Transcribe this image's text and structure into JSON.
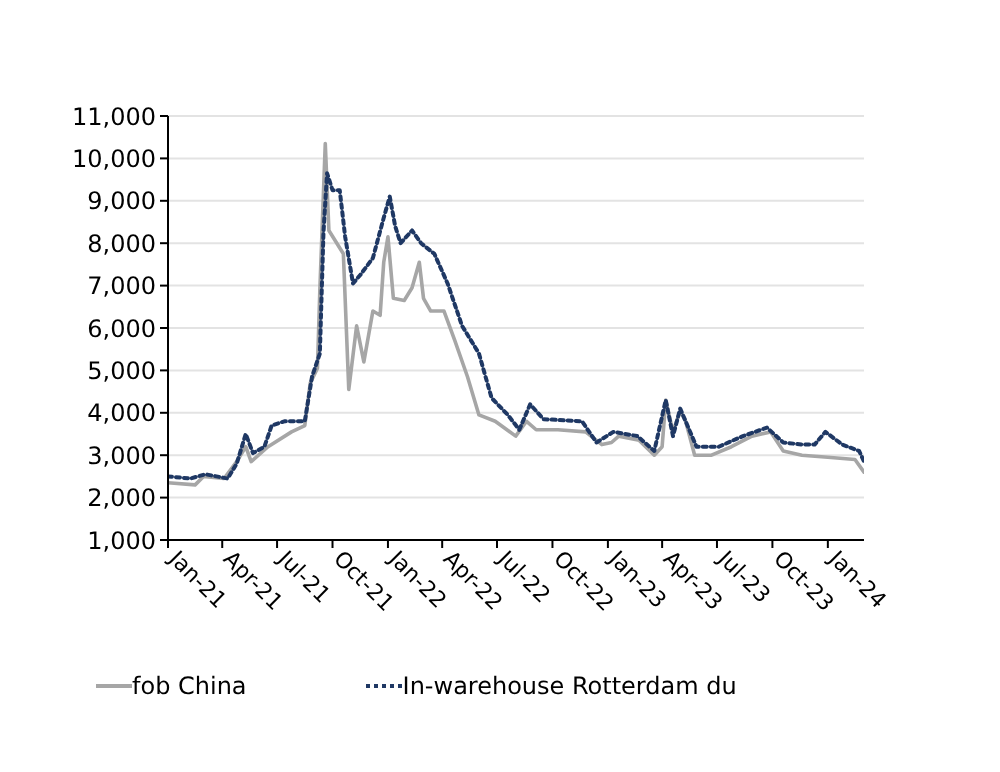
{
  "chart_data": {
    "type": "line",
    "xlim": [
      "2021-01-01",
      "2024-03-01"
    ],
    "xticks": [
      {
        "value": "2021-01-01",
        "label": "Jan-21"
      },
      {
        "value": "2021-04-01",
        "label": "Apr-21"
      },
      {
        "value": "2021-07-01",
        "label": "Jul-21"
      },
      {
        "value": "2021-10-01",
        "label": "Oct-21"
      },
      {
        "value": "2022-01-01",
        "label": "Jan-22"
      },
      {
        "value": "2022-04-01",
        "label": "Apr-22"
      },
      {
        "value": "2022-07-01",
        "label": "Jul-22"
      },
      {
        "value": "2022-10-01",
        "label": "Oct-22"
      },
      {
        "value": "2023-01-01",
        "label": "Jan-23"
      },
      {
        "value": "2023-04-01",
        "label": "Apr-23"
      },
      {
        "value": "2023-07-01",
        "label": "Jul-23"
      },
      {
        "value": "2023-10-01",
        "label": "Oct-23"
      },
      {
        "value": "2024-01-01",
        "label": "Jan-24"
      }
    ],
    "ylim": [
      1000,
      11000
    ],
    "yticks": [
      {
        "value": 1000,
        "label": "1,000"
      },
      {
        "value": 2000,
        "label": "2,000"
      },
      {
        "value": 3000,
        "label": "3,000"
      },
      {
        "value": 4000,
        "label": "4,000"
      },
      {
        "value": 5000,
        "label": "5,000"
      },
      {
        "value": 6000,
        "label": "6,000"
      },
      {
        "value": 7000,
        "label": "7,000"
      },
      {
        "value": 8000,
        "label": "8,000"
      },
      {
        "value": 9000,
        "label": "9,000"
      },
      {
        "value": 10000,
        "label": "10,000"
      },
      {
        "value": 11000,
        "label": "11,000"
      }
    ],
    "grid": "y",
    "legend": "bottom",
    "marker": "none",
    "series": [
      {
        "name": "fob China",
        "color": "#a6a6a6",
        "line_style": "solid",
        "x": [
          "2021-01-01",
          "2021-02-15",
          "2021-03-01",
          "2021-04-04",
          "2021-04-25",
          "2021-05-10",
          "2021-05-19",
          "2021-06-16",
          "2021-07-25",
          "2021-08-16",
          "2021-08-25",
          "2021-09-06",
          "2021-09-10",
          "2021-09-19",
          "2021-09-25",
          "2021-10-19",
          "2021-10-28",
          "2021-11-10",
          "2021-11-22",
          "2021-12-07",
          "2021-12-19",
          "2021-12-25",
          "2022-01-01",
          "2022-01-10",
          "2022-01-28",
          "2022-02-10",
          "2022-02-22",
          "2022-03-01",
          "2022-03-13",
          "2022-04-04",
          "2022-04-22",
          "2022-05-13",
          "2022-06-01",
          "2022-06-28",
          "2022-08-01",
          "2022-08-19",
          "2022-09-04",
          "2022-10-10",
          "2022-11-25",
          "2022-12-22",
          "2023-01-07",
          "2023-01-19",
          "2023-02-22",
          "2023-03-19",
          "2023-04-01",
          "2023-04-07",
          "2023-04-19",
          "2023-05-01",
          "2023-05-10",
          "2023-05-25",
          "2023-06-22",
          "2023-07-25",
          "2023-08-28",
          "2023-09-28",
          "2023-10-19",
          "2023-11-19",
          "2024-01-01",
          "2024-02-15",
          "2024-03-01"
        ],
        "values": [
          2350,
          2300,
          2500,
          2450,
          2850,
          3200,
          2850,
          3200,
          3550,
          3700,
          4700,
          5050,
          6900,
          10350,
          8300,
          7750,
          4550,
          6050,
          5200,
          6400,
          6300,
          7550,
          8150,
          6700,
          6650,
          6950,
          7550,
          6700,
          6400,
          6400,
          5700,
          4850,
          3950,
          3800,
          3450,
          3800,
          3600,
          3600,
          3550,
          3250,
          3300,
          3450,
          3350,
          3000,
          3200,
          4300,
          3550,
          4050,
          3800,
          3000,
          3000,
          3200,
          3450,
          3550,
          3100,
          3000,
          2950,
          2900,
          2600
        ]
      },
      {
        "name": "In-warehouse Rotterdam du",
        "color": "#1f3864",
        "line_style": "dotted",
        "x": [
          "2021-01-01",
          "2021-02-07",
          "2021-03-04",
          "2021-04-10",
          "2021-04-25",
          "2021-05-10",
          "2021-05-22",
          "2021-06-10",
          "2021-06-22",
          "2021-07-13",
          "2021-08-16",
          "2021-08-28",
          "2021-09-10",
          "2021-09-16",
          "2021-09-22",
          "2021-10-01",
          "2021-10-13",
          "2021-10-22",
          "2021-11-04",
          "2021-11-16",
          "2021-12-07",
          "2021-12-25",
          "2022-01-04",
          "2022-01-13",
          "2022-01-22",
          "2022-02-10",
          "2022-02-25",
          "2022-03-19",
          "2022-04-10",
          "2022-05-04",
          "2022-06-01",
          "2022-06-22",
          "2022-07-19",
          "2022-08-07",
          "2022-08-25",
          "2022-09-16",
          "2022-11-19",
          "2022-12-13",
          "2023-01-10",
          "2023-02-19",
          "2023-03-19",
          "2023-04-07",
          "2023-04-19",
          "2023-05-01",
          "2023-05-28",
          "2023-07-04",
          "2023-08-13",
          "2023-09-22",
          "2023-10-19",
          "2023-11-19",
          "2023-12-10",
          "2023-12-28",
          "2024-01-25",
          "2024-02-22",
          "2024-03-01"
        ],
        "values": [
          2500,
          2450,
          2550,
          2450,
          2800,
          3500,
          3050,
          3200,
          3700,
          3800,
          3800,
          4850,
          5400,
          8250,
          9650,
          9250,
          9250,
          8150,
          7050,
          7250,
          7650,
          8600,
          9100,
          8400,
          8000,
          8300,
          8000,
          7750,
          7050,
          6050,
          5400,
          4350,
          3950,
          3600,
          4200,
          3850,
          3800,
          3300,
          3550,
          3450,
          3100,
          4300,
          3450,
          4100,
          3200,
          3200,
          3450,
          3650,
          3300,
          3250,
          3250,
          3550,
          3250,
          3100,
          2850
        ]
      }
    ]
  }
}
